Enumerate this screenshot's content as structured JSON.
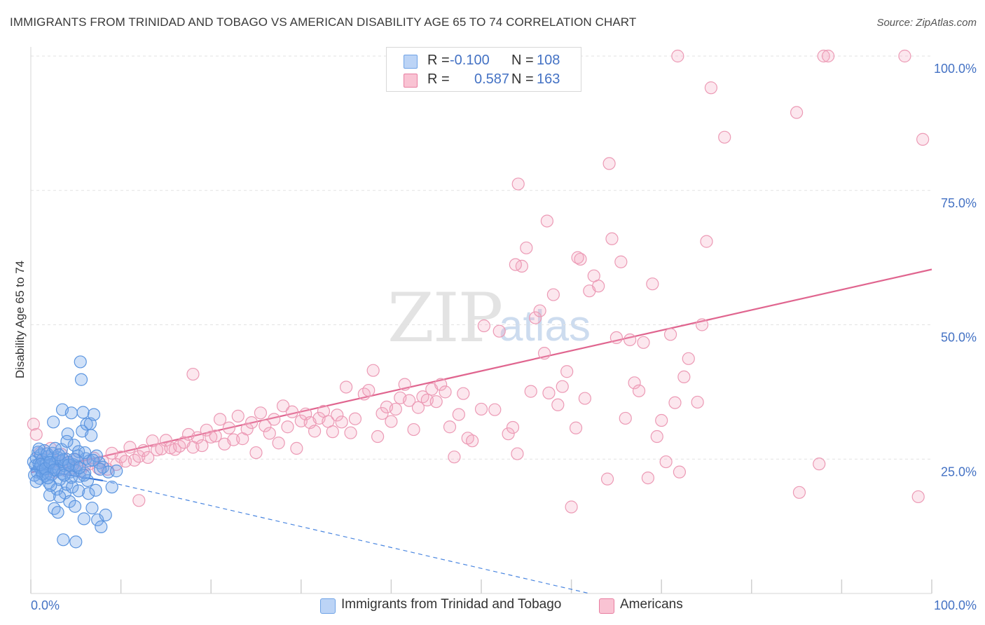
{
  "title": "IMMIGRANTS FROM TRINIDAD AND TOBAGO VS AMERICAN DISABILITY AGE 65 TO 74 CORRELATION CHART",
  "source": "Source: ZipAtlas.com",
  "watermark": {
    "zip": "ZIP",
    "atlas": "atlas"
  },
  "legend": {
    "rows": [
      {
        "r_label": "R =",
        "r_value": "-0.100",
        "n_label": "N =",
        "n_value": "108",
        "color": "#6fa3e6",
        "fill": "#bcd4f6"
      },
      {
        "r_label": "R =",
        "r_value": "0.587",
        "n_label": "N =",
        "n_value": "163",
        "color": "#e87ea1",
        "fill": "#f9c3d3"
      }
    ]
  },
  "bottom_legend": [
    {
      "label": "Immigrants from Trinidad and Tobago",
      "color": "#6fa3e6",
      "fill": "#bcd4f6"
    },
    {
      "label": "Americans",
      "color": "#e87ea1",
      "fill": "#f9c3d3"
    }
  ],
  "chart_data": {
    "type": "scatter",
    "title": "IMMIGRANTS FROM TRINIDAD AND TOBAGO VS AMERICAN DISABILITY AGE 65 TO 74 CORRELATION CHART",
    "xlabel": "",
    "ylabel": "Disability Age 65 to 74",
    "xlim": [
      0,
      100
    ],
    "ylim": [
      0,
      100
    ],
    "x_tick_labels": [
      "0.0%",
      "100.0%"
    ],
    "y_tick_labels": [
      {
        "value": 25,
        "label": "25.0%"
      },
      {
        "value": 50,
        "label": "50.0%"
      },
      {
        "value": 75,
        "label": "75.0%"
      },
      {
        "value": 100,
        "label": "100.0%"
      }
    ],
    "grid": true,
    "legend_position": "top-center",
    "series": [
      {
        "name": "Immigrants from Trinidad and Tobago",
        "color": "#4a86e0",
        "trend": {
          "solid": [
            [
              0,
              23.2
            ],
            [
              8,
              21.0
            ]
          ],
          "dashed": [
            [
              8,
              21.0
            ],
            [
              62,
              0
            ]
          ]
        },
        "points": [
          [
            0.3,
            24.5
          ],
          [
            0.5,
            23.8
          ],
          [
            0.6,
            25.2
          ],
          [
            0.7,
            22.6
          ],
          [
            0.8,
            26.3
          ],
          [
            0.9,
            24.1
          ],
          [
            1.0,
            23.4
          ],
          [
            1.0,
            21.4
          ],
          [
            1.1,
            25.8
          ],
          [
            1.2,
            22.8
          ],
          [
            1.3,
            24.9
          ],
          [
            1.4,
            23.1
          ],
          [
            1.5,
            26.6
          ],
          [
            1.6,
            21.9
          ],
          [
            1.7,
            24.3
          ],
          [
            1.8,
            22.4
          ],
          [
            1.9,
            25.5
          ],
          [
            2.0,
            23.7
          ],
          [
            2.0,
            20.6
          ],
          [
            2.1,
            18.3
          ],
          [
            2.2,
            24.8
          ],
          [
            2.3,
            22.1
          ],
          [
            2.4,
            26.1
          ],
          [
            2.5,
            23.5
          ],
          [
            2.5,
            31.9
          ],
          [
            2.6,
            15.8
          ],
          [
            2.7,
            24.2
          ],
          [
            2.8,
            22.9
          ],
          [
            2.9,
            19.4
          ],
          [
            3.0,
            25.3
          ],
          [
            3.0,
            15.1
          ],
          [
            3.1,
            23.0
          ],
          [
            3.2,
            21.2
          ],
          [
            3.3,
            24.6
          ],
          [
            3.4,
            26.8
          ],
          [
            3.5,
            22.3
          ],
          [
            3.5,
            34.2
          ],
          [
            3.6,
            10.0
          ],
          [
            3.7,
            23.8
          ],
          [
            3.8,
            18.7
          ],
          [
            3.9,
            25.0
          ],
          [
            4.0,
            20.3
          ],
          [
            4.1,
            29.7
          ],
          [
            4.2,
            24.4
          ],
          [
            4.3,
            17.1
          ],
          [
            4.4,
            22.6
          ],
          [
            4.5,
            33.6
          ],
          [
            4.6,
            19.8
          ],
          [
            4.7,
            24.0
          ],
          [
            4.8,
            27.6
          ],
          [
            4.9,
            16.2
          ],
          [
            5.0,
            9.6
          ],
          [
            5.0,
            22.9
          ],
          [
            5.1,
            23.7
          ],
          [
            5.2,
            25.6
          ],
          [
            5.3,
            19.1
          ],
          [
            5.4,
            21.8
          ],
          [
            5.5,
            43.1
          ],
          [
            5.6,
            39.8
          ],
          [
            5.7,
            30.2
          ],
          [
            5.8,
            33.7
          ],
          [
            5.9,
            13.9
          ],
          [
            6.0,
            22.4
          ],
          [
            6.1,
            25.1
          ],
          [
            6.2,
            31.5
          ],
          [
            6.3,
            21.0
          ],
          [
            6.4,
            18.6
          ],
          [
            6.5,
            24.7
          ],
          [
            6.6,
            31.6
          ],
          [
            6.8,
            15.9
          ],
          [
            7.0,
            33.3
          ],
          [
            7.2,
            19.2
          ],
          [
            7.4,
            13.7
          ],
          [
            7.6,
            24.3
          ],
          [
            7.8,
            12.4
          ],
          [
            8.0,
            23.5
          ],
          [
            8.3,
            14.6
          ],
          [
            8.6,
            22.6
          ],
          [
            0.4,
            22.0
          ],
          [
            0.9,
            26.9
          ],
          [
            1.3,
            22.2
          ],
          [
            1.8,
            26.0
          ],
          [
            2.2,
            20.1
          ],
          [
            2.7,
            27.0
          ],
          [
            3.2,
            18.0
          ],
          [
            3.6,
            24.9
          ],
          [
            4.0,
            28.3
          ],
          [
            4.5,
            21.6
          ],
          [
            5.3,
            26.4
          ],
          [
            5.9,
            22.0
          ],
          [
            6.7,
            29.4
          ],
          [
            7.3,
            25.6
          ],
          [
            1.1,
            24.0
          ],
          [
            1.6,
            23.2
          ],
          [
            2.1,
            24.4
          ],
          [
            2.6,
            23.0
          ],
          [
            3.1,
            25.8
          ],
          [
            3.7,
            22.0
          ],
          [
            4.2,
            23.9
          ],
          [
            4.8,
            25.0
          ],
          [
            5.4,
            23.4
          ],
          [
            6.0,
            26.2
          ],
          [
            6.9,
            24.8
          ],
          [
            7.7,
            23.1
          ],
          [
            9.0,
            19.8
          ],
          [
            9.5,
            22.8
          ],
          [
            0.6,
            20.8
          ],
          [
            1.9,
            21.5
          ]
        ]
      },
      {
        "name": "Americans",
        "color": "#e8789e",
        "trend": {
          "solid": [
            [
              0,
              22.5
            ],
            [
              100,
              60.3
            ]
          ]
        },
        "points": [
          [
            0.3,
            31.5
          ],
          [
            0.6,
            29.6
          ],
          [
            1.0,
            26.1
          ],
          [
            1.4,
            24.5
          ],
          [
            1.8,
            23.1
          ],
          [
            2.2,
            27.0
          ],
          [
            2.6,
            22.6
          ],
          [
            3.0,
            24.6
          ],
          [
            3.4,
            25.9
          ],
          [
            3.8,
            22.9
          ],
          [
            4.2,
            24.3
          ],
          [
            4.6,
            23.4
          ],
          [
            5.0,
            24.9
          ],
          [
            5.5,
            22.7
          ],
          [
            6.0,
            23.8
          ],
          [
            6.5,
            24.1
          ],
          [
            7.0,
            25.2
          ],
          [
            7.5,
            23.3
          ],
          [
            8.0,
            24.5
          ],
          [
            8.5,
            23.1
          ],
          [
            9.0,
            26.1
          ],
          [
            9.5,
            24.0
          ],
          [
            10.0,
            25.4
          ],
          [
            10.5,
            24.6
          ],
          [
            11.0,
            27.2
          ],
          [
            11.5,
            24.8
          ],
          [
            12.0,
            25.5
          ],
          [
            12.5,
            26.6
          ],
          [
            13.0,
            25.3
          ],
          [
            13.5,
            28.4
          ],
          [
            14.0,
            26.7
          ],
          [
            14.5,
            26.9
          ],
          [
            15.0,
            28.5
          ],
          [
            15.5,
            27.1
          ],
          [
            16.0,
            26.8
          ],
          [
            16.5,
            27.4
          ],
          [
            17.0,
            28.1
          ],
          [
            17.5,
            29.6
          ],
          [
            18.0,
            27.2
          ],
          [
            18.5,
            29.0
          ],
          [
            19.0,
            27.5
          ],
          [
            19.5,
            30.4
          ],
          [
            20.0,
            29.1
          ],
          [
            20.5,
            29.3
          ],
          [
            21.0,
            32.4
          ],
          [
            21.5,
            27.8
          ],
          [
            22.0,
            30.8
          ],
          [
            22.5,
            28.6
          ],
          [
            23.0,
            33.0
          ],
          [
            23.5,
            28.8
          ],
          [
            24.0,
            30.6
          ],
          [
            24.5,
            31.8
          ],
          [
            25.0,
            26.2
          ],
          [
            25.5,
            33.6
          ],
          [
            26.0,
            31.2
          ],
          [
            26.5,
            29.8
          ],
          [
            27.0,
            32.4
          ],
          [
            27.5,
            28.0
          ],
          [
            28.0,
            34.9
          ],
          [
            28.5,
            31.0
          ],
          [
            29.0,
            33.8
          ],
          [
            29.5,
            27.0
          ],
          [
            30.0,
            32.1
          ],
          [
            30.5,
            33.4
          ],
          [
            31.0,
            31.8
          ],
          [
            31.5,
            30.2
          ],
          [
            32.0,
            32.6
          ],
          [
            32.5,
            33.9
          ],
          [
            33.0,
            32.0
          ],
          [
            33.5,
            30.1
          ],
          [
            34.0,
            33.2
          ],
          [
            34.5,
            31.9
          ],
          [
            35.0,
            38.4
          ],
          [
            35.5,
            29.9
          ],
          [
            36.0,
            32.5
          ],
          [
            37.0,
            37.1
          ],
          [
            37.5,
            37.8
          ],
          [
            38.0,
            41.5
          ],
          [
            38.5,
            29.2
          ],
          [
            39.0,
            33.5
          ],
          [
            39.5,
            34.7
          ],
          [
            40.0,
            32.0
          ],
          [
            40.5,
            34.3
          ],
          [
            41.0,
            36.4
          ],
          [
            41.5,
            38.9
          ],
          [
            42.0,
            35.9
          ],
          [
            42.5,
            30.5
          ],
          [
            43.0,
            34.6
          ],
          [
            43.5,
            36.6
          ],
          [
            44.0,
            36.0
          ],
          [
            44.5,
            38.0
          ],
          [
            45.0,
            35.7
          ],
          [
            45.5,
            38.9
          ],
          [
            46.0,
            37.5
          ],
          [
            46.5,
            31.0
          ],
          [
            47.0,
            25.4
          ],
          [
            47.5,
            33.3
          ],
          [
            48.0,
            37.2
          ],
          [
            48.5,
            28.9
          ],
          [
            49.0,
            28.4
          ],
          [
            50.0,
            34.3
          ],
          [
            50.3,
            49.8
          ],
          [
            51.5,
            34.2
          ],
          [
            52.0,
            48.8
          ],
          [
            53.0,
            29.7
          ],
          [
            53.5,
            30.9
          ],
          [
            54.0,
            26.0
          ],
          [
            54.5,
            60.9
          ],
          [
            55.0,
            64.3
          ],
          [
            55.5,
            37.6
          ],
          [
            56.0,
            51.3
          ],
          [
            56.5,
            52.6
          ],
          [
            57.0,
            44.7
          ],
          [
            57.5,
            37.3
          ],
          [
            58.0,
            55.6
          ],
          [
            58.5,
            35.1
          ],
          [
            59.0,
            38.5
          ],
          [
            59.5,
            41.3
          ],
          [
            60.0,
            16.1
          ],
          [
            60.5,
            30.8
          ],
          [
            61.0,
            62.2
          ],
          [
            61.5,
            36.3
          ],
          [
            62.0,
            56.3
          ],
          [
            62.5,
            59.1
          ],
          [
            63.0,
            57.2
          ],
          [
            64.0,
            21.3
          ],
          [
            64.5,
            66.0
          ],
          [
            65.0,
            47.6
          ],
          [
            65.5,
            61.7
          ],
          [
            66.0,
            32.6
          ],
          [
            66.5,
            47.2
          ],
          [
            67.0,
            39.2
          ],
          [
            67.5,
            37.7
          ],
          [
            68.0,
            46.7
          ],
          [
            68.5,
            21.5
          ],
          [
            69.0,
            57.6
          ],
          [
            69.5,
            29.2
          ],
          [
            70.0,
            32.2
          ],
          [
            70.5,
            24.5
          ],
          [
            71.0,
            48.2
          ],
          [
            71.5,
            35.5
          ],
          [
            72.0,
            22.6
          ],
          [
            72.5,
            40.3
          ],
          [
            73.0,
            43.7
          ],
          [
            74.0,
            35.6
          ],
          [
            74.5,
            50.0
          ],
          [
            75.0,
            65.5
          ],
          [
            60.7,
            62.5
          ],
          [
            53.8,
            61.2
          ],
          [
            54.1,
            76.2
          ],
          [
            57.3,
            69.3
          ],
          [
            64.2,
            80.0
          ],
          [
            71.8,
            100.0
          ],
          [
            75.5,
            94.1
          ],
          [
            77.0,
            84.9
          ],
          [
            85.0,
            89.5
          ],
          [
            88.0,
            100.0
          ],
          [
            88.5,
            100.0
          ],
          [
            97.0,
            100.0
          ],
          [
            99.0,
            84.5
          ],
          [
            85.3,
            18.8
          ],
          [
            87.5,
            24.1
          ],
          [
            98.5,
            18.0
          ],
          [
            12.0,
            17.3
          ],
          [
            18.0,
            40.8
          ]
        ]
      }
    ]
  }
}
